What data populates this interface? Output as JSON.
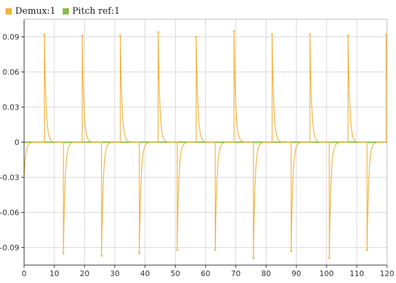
{
  "chart_data": {
    "type": "line",
    "title": "",
    "xlabel": "",
    "ylabel": "",
    "xlim": [
      0,
      120
    ],
    "ylim": [
      -0.105,
      0.105
    ],
    "xticks": [
      0,
      10,
      20,
      30,
      40,
      50,
      60,
      70,
      80,
      90,
      100,
      110,
      120
    ],
    "yticks": [
      0.09,
      0.06,
      0.03,
      0,
      -0.03,
      -0.06,
      -0.09
    ],
    "ytick_labels": [
      "0.09",
      "0.06",
      "0.03",
      "0",
      "-0.03",
      "-0.06",
      "-0.09"
    ],
    "grid": true,
    "legend": "top-left",
    "series": [
      {
        "name": "Demux:1",
        "color": "#f2b33d",
        "initial_value": -0.03,
        "events": [
          {
            "x": 6.7,
            "peak": 0.092
          },
          {
            "x": 13.0,
            "peak": -0.095
          },
          {
            "x": 19.2,
            "peak": 0.091
          },
          {
            "x": 25.6,
            "peak": -0.097
          },
          {
            "x": 31.8,
            "peak": 0.091
          },
          {
            "x": 38.1,
            "peak": -0.095
          },
          {
            "x": 44.3,
            "peak": 0.094
          },
          {
            "x": 50.6,
            "peak": -0.092
          },
          {
            "x": 56.9,
            "peak": 0.09
          },
          {
            "x": 63.2,
            "peak": -0.092
          },
          {
            "x": 69.4,
            "peak": 0.095
          },
          {
            "x": 75.8,
            "peak": -0.099
          },
          {
            "x": 82.0,
            "peak": 0.092
          },
          {
            "x": 88.3,
            "peak": -0.093
          },
          {
            "x": 94.5,
            "peak": 0.092
          },
          {
            "x": 100.9,
            "peak": -0.099
          },
          {
            "x": 107.1,
            "peak": 0.091
          },
          {
            "x": 113.4,
            "peak": -0.092
          },
          {
            "x": 119.7,
            "peak": 0.092
          }
        ]
      },
      {
        "name": "Pitch ref:1",
        "color": "#8bbb4a",
        "constant_value": 0
      }
    ]
  }
}
